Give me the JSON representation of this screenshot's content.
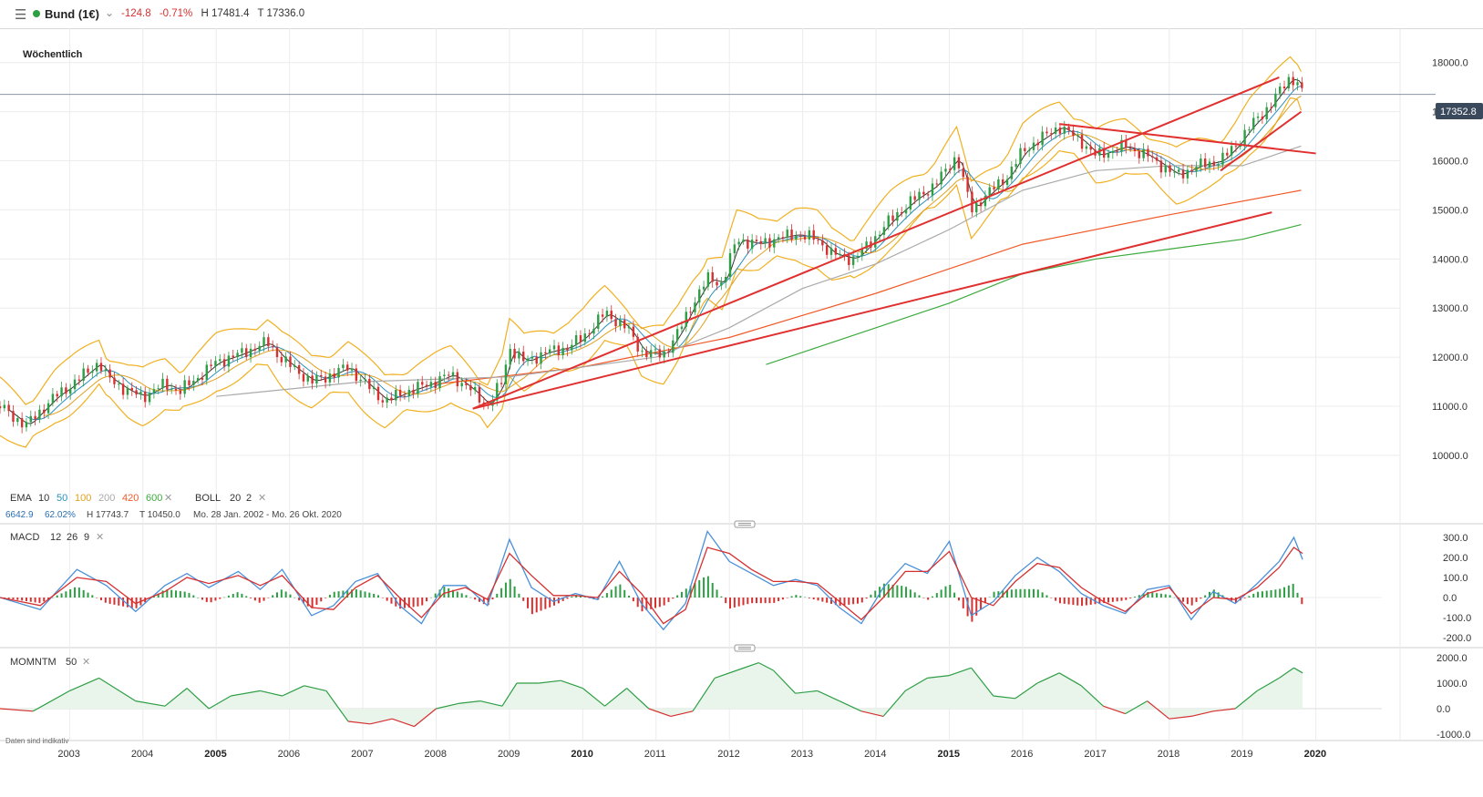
{
  "header": {
    "menu_icon": "hamburger-menu-icon",
    "status_color": "#2e9e45",
    "instrument": "Bund (1€)",
    "change": "-124.8",
    "change_pct": "-0.71%",
    "high": "H 17481.4",
    "low": "T 17336.0"
  },
  "timeframe": "Wöchentlich",
  "current_price_label": "17352.8",
  "legend": {
    "ema_label": "EMA",
    "ema_periods": [
      "10",
      "50",
      "100",
      "200",
      "420",
      "600"
    ],
    "ema_colors": [
      "#333333",
      "#2a8fbd",
      "#e0a020",
      "#aaaaaa",
      "#f05a28",
      "#3daa3d"
    ],
    "boll_label": "BOLL",
    "boll_params": [
      "20",
      "2"
    ],
    "stats": {
      "value": "6642.9",
      "pct": "62.02%",
      "high": "H 17743.7",
      "low": "T 10450.0",
      "range": "Mo. 28 Jan. 2002 - Mo. 26 Okt. 2020"
    }
  },
  "macd_legend": {
    "label": "MACD",
    "params": [
      "12",
      "26",
      "9"
    ]
  },
  "mom_legend": {
    "label": "MOMNTM",
    "params": [
      "50"
    ]
  },
  "disclaimer": "Daten sind indikativ",
  "colors": {
    "up": "#2e9e45",
    "down": "#d63030",
    "trend": "#e03030",
    "macd": "#4a90d9",
    "signal": "#d63030",
    "boll": "#f0b020"
  },
  "chart_data": {
    "type": "line",
    "title": "Bund (1€)",
    "price_axis": {
      "ylim": [
        9200,
        18700
      ],
      "ticks": [
        10000,
        11000,
        12000,
        13000,
        14000,
        15000,
        16000,
        17000,
        18000
      ],
      "tick_labels": [
        "10000.0",
        "11000.0",
        "12000.0",
        "13000.0",
        "14000.0",
        "15000.0",
        "16000.0",
        "17000.0",
        "18000.0"
      ]
    },
    "x_axis": {
      "range": [
        2002.05,
        2020.9
      ],
      "ticks": [
        2003,
        2004,
        2005,
        2006,
        2007,
        2008,
        2009,
        2010,
        2011,
        2012,
        2013,
        2014,
        2015,
        2016,
        2017,
        2018,
        2019,
        2020
      ],
      "bold_ticks": [
        2005,
        2010,
        2015,
        2020
      ]
    },
    "price_series": {
      "name": "Bund weekly close",
      "x": [
        2002.05,
        2002.4,
        2002.8,
        2003.0,
        2003.4,
        2003.5,
        2003.8,
        2004.0,
        2004.3,
        2004.5,
        2004.8,
        2005.0,
        2005.3,
        2005.7,
        2005.9,
        2006.3,
        2006.5,
        2006.8,
        2007.0,
        2007.3,
        2007.6,
        2007.9,
        2008.2,
        2008.5,
        2008.7,
        2008.9,
        2009.0,
        2009.2,
        2009.5,
        2009.8,
        2010.0,
        2010.3,
        2010.6,
        2010.8,
        2011.1,
        2011.3,
        2011.5,
        2011.7,
        2011.9,
        2012.1,
        2012.4,
        2012.6,
        2012.9,
        2013.2,
        2013.4,
        2013.7,
        2013.9,
        2014.2,
        2014.5,
        2014.8,
        2015.1,
        2015.3,
        2015.5,
        2015.8,
        2016.0,
        2016.3,
        2016.5,
        2016.8,
        2017.0,
        2017.4,
        2017.7,
        2017.9,
        2018.1,
        2018.4,
        2018.7,
        2018.9,
        2019.1,
        2019.3,
        2019.5,
        2019.65,
        2019.75,
        2019.82
      ],
      "y": [
        11000,
        10600,
        11200,
        11400,
        11900,
        11600,
        11300,
        11200,
        11450,
        11300,
        11650,
        11900,
        12050,
        12300,
        11950,
        11500,
        11600,
        11800,
        11500,
        11100,
        11300,
        11450,
        11650,
        11300,
        11000,
        11500,
        12200,
        11900,
        12100,
        12200,
        12400,
        12900,
        12600,
        12100,
        12050,
        12500,
        13100,
        13600,
        13500,
        14400,
        14300,
        14400,
        14500,
        14400,
        14100,
        14000,
        14300,
        14800,
        15200,
        15500,
        16100,
        15000,
        15300,
        15700,
        16200,
        16500,
        16700,
        16400,
        16100,
        16300,
        16100,
        15900,
        15700,
        15900,
        16000,
        16300,
        16700,
        17000,
        17400,
        17700,
        17600,
        17350
      ]
    },
    "macd": {
      "ylim": [
        -250,
        350
      ],
      "tick_labels": [
        "300.0",
        "200.0",
        "100.0",
        "0.0",
        "-100.0",
        "-200.0"
      ],
      "ticks": [
        300,
        200,
        100,
        0,
        -100,
        -200
      ],
      "x": [
        2002.05,
        2002.6,
        2003.1,
        2003.5,
        2003.9,
        2004.3,
        2004.6,
        2004.9,
        2005.3,
        2005.6,
        2005.9,
        2006.3,
        2006.6,
        2006.9,
        2007.2,
        2007.5,
        2007.8,
        2008.1,
        2008.4,
        2008.7,
        2009.0,
        2009.3,
        2009.6,
        2009.9,
        2010.2,
        2010.5,
        2010.8,
        2011.1,
        2011.4,
        2011.7,
        2012.0,
        2012.3,
        2012.6,
        2012.9,
        2013.2,
        2013.5,
        2013.8,
        2014.1,
        2014.4,
        2014.7,
        2015.0,
        2015.3,
        2015.6,
        2015.9,
        2016.2,
        2016.5,
        2016.8,
        2017.1,
        2017.4,
        2017.7,
        2018.0,
        2018.3,
        2018.6,
        2018.9,
        2019.2,
        2019.5,
        2019.7,
        2019.82
      ],
      "macd": [
        0,
        -60,
        140,
        60,
        -70,
        60,
        120,
        50,
        130,
        40,
        140,
        -90,
        -40,
        80,
        120,
        -40,
        -130,
        60,
        60,
        -40,
        290,
        50,
        -20,
        20,
        -10,
        180,
        -30,
        -160,
        -30,
        330,
        180,
        120,
        60,
        90,
        60,
        -50,
        -130,
        50,
        170,
        120,
        280,
        -90,
        -20,
        110,
        200,
        130,
        20,
        -40,
        -80,
        40,
        60,
        -110,
        30,
        -30,
        70,
        180,
        300,
        190
      ],
      "signal": [
        0,
        -40,
        100,
        80,
        -30,
        30,
        100,
        70,
        110,
        60,
        110,
        -50,
        -60,
        50,
        110,
        0,
        -100,
        20,
        50,
        -10,
        220,
        110,
        10,
        10,
        0,
        130,
        20,
        -130,
        -60,
        250,
        220,
        140,
        80,
        80,
        70,
        -20,
        -110,
        0,
        130,
        130,
        230,
        0,
        -40,
        80,
        170,
        150,
        50,
        -20,
        -70,
        20,
        50,
        -80,
        0,
        -10,
        50,
        150,
        250,
        220
      ]
    },
    "momentum": {
      "ylim": [
        -1250,
        2250
      ],
      "tick_labels": [
        "2000.0",
        "1000.0",
        "0.0",
        "-1000.0"
      ],
      "ticks": [
        2000,
        1000,
        0,
        -1000
      ],
      "x": [
        2002.05,
        2002.5,
        2003.0,
        2003.4,
        2003.9,
        2004.3,
        2004.6,
        2004.9,
        2005.2,
        2005.6,
        2005.9,
        2006.2,
        2006.5,
        2006.8,
        2007.1,
        2007.4,
        2007.7,
        2008.0,
        2008.3,
        2008.6,
        2008.9,
        2009.1,
        2009.4,
        2009.7,
        2010.0,
        2010.3,
        2010.6,
        2010.9,
        2011.2,
        2011.5,
        2011.8,
        2012.1,
        2012.4,
        2012.6,
        2012.9,
        2013.2,
        2013.5,
        2013.8,
        2014.1,
        2014.4,
        2014.7,
        2015.0,
        2015.3,
        2015.6,
        2015.9,
        2016.2,
        2016.5,
        2016.8,
        2017.1,
        2017.4,
        2017.7,
        2018.0,
        2018.3,
        2018.6,
        2018.9,
        2019.2,
        2019.5,
        2019.7,
        2019.82
      ],
      "y": [
        0,
        -100,
        700,
        1200,
        300,
        100,
        800,
        0,
        500,
        700,
        500,
        900,
        700,
        -500,
        -600,
        -400,
        -700,
        0,
        200,
        300,
        100,
        1000,
        1000,
        1100,
        800,
        100,
        800,
        0,
        -300,
        -100,
        1200,
        1500,
        1800,
        1500,
        600,
        700,
        300,
        -100,
        -300,
        700,
        1200,
        1300,
        1600,
        500,
        400,
        1000,
        1400,
        900,
        100,
        -200,
        300,
        -400,
        -300,
        -100,
        0,
        700,
        1200,
        1600,
        1400
      ]
    },
    "trendlines": [
      {
        "x": [
          2008.5,
          2019.5
        ],
        "y": [
          10950,
          17700
        ]
      },
      {
        "x": [
          2008.5,
          2019.4
        ],
        "y": [
          10950,
          14950
        ]
      },
      {
        "x": [
          2016.5,
          2020.0
        ],
        "y": [
          16750,
          16150
        ]
      },
      {
        "x": [
          2018.7,
          2019.8
        ],
        "y": [
          15800,
          17000
        ]
      }
    ],
    "emas": [
      {
        "name": "EMA 420",
        "color": "#f05a28",
        "x": [
          2008.0,
          2010.0,
          2012.0,
          2014.0,
          2016.0,
          2018.0,
          2019.8
        ],
        "y": [
          11450,
          11800,
          12400,
          13300,
          14300,
          14900,
          15400
        ]
      },
      {
        "name": "EMA 600",
        "color": "#3daa3d",
        "x": [
          2012.5,
          2014.0,
          2015.0,
          2016.0,
          2017.0,
          2018.0,
          2019.0,
          2019.8
        ],
        "y": [
          11850,
          12600,
          13100,
          13700,
          14000,
          14200,
          14400,
          14700
        ]
      },
      {
        "name": "EMA 200",
        "color": "#aaaaaa",
        "x": [
          2005.0,
          2007.0,
          2009.0,
          2011.0,
          2012.0,
          2013.0,
          2014.0,
          2015.0,
          2016.0,
          2017.0,
          2018.0,
          2019.0,
          2019.8
        ],
        "y": [
          11200,
          11500,
          11600,
          12000,
          12600,
          13400,
          13900,
          14600,
          15400,
          15800,
          15900,
          15900,
          16300
        ]
      }
    ]
  }
}
